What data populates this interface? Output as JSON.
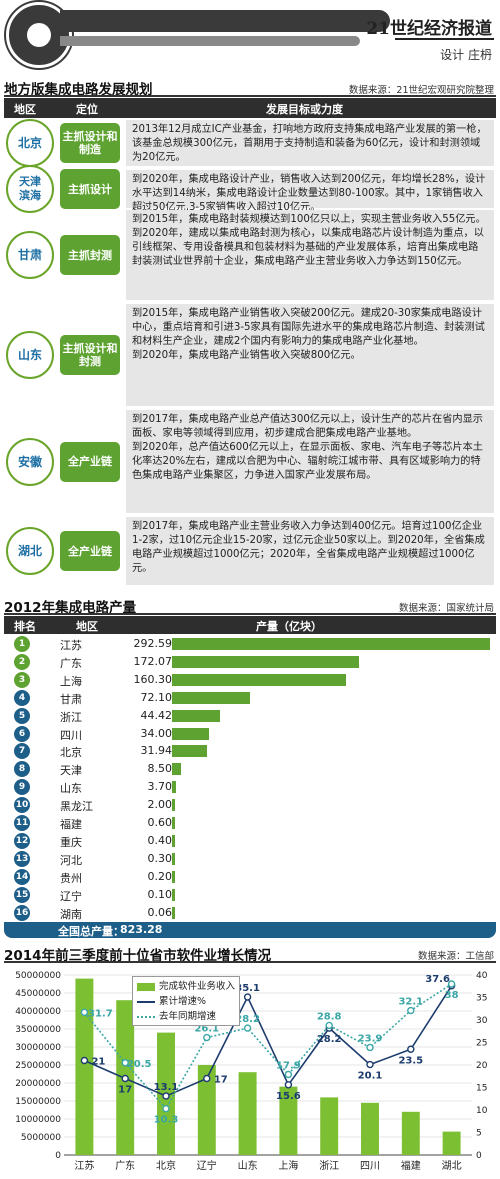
{
  "header": {
    "paper": "21世纪经济报道",
    "designer": "设计 庄枬"
  },
  "section1": {
    "title": "地方版集成电路发展规划",
    "source": "数据来源：21世纪宏观研究院整理",
    "col_region": "地区",
    "col_position": "定位",
    "col_goals": "发展目标或力度",
    "rows": [
      {
        "region": "北京",
        "position": "主抓设计和制造",
        "desc": [
          "2013年12月成立IC产业基金，打响地方政府支持集成电路产业发展的第一枪，该基金总规模300亿元，首期用于支持制造和装备为60亿元，设计和封测领域为20亿元。"
        ]
      },
      {
        "region": "天津滨海",
        "position": "主抓设计",
        "desc": [
          "到2020年，集成电路设计产业，销售收入达到200亿元，年均增长28%，设计水平达到14纳米，集成电路设计企业数量达到80-100家。其中，1家销售收入超过50亿元,3-5家销售收入超过10亿元。"
        ]
      },
      {
        "region": "甘肃",
        "position": "主抓封测",
        "desc": [
          "到2015年，集成电路封装规模达到100亿只以上，实现主营业务收入55亿元。",
          "到2020年，建成以集成电路封测为核心，以集成电路芯片设计制造为重点，以引线框架、专用设备模具和包装材料为基础的产业发展体系，培育出集成电路封装测试业世界前十企业，集成电路产业主营业务收入力争达到150亿元。"
        ]
      },
      {
        "region": "山东",
        "position": "主抓设计和封测",
        "desc": [
          "到2015年，集成电路产业销售收入突破200亿元。建成20-30家集成电路设计中心，重点培育和引进3-5家具有国际先进水平的集成电路芯片制造、封装测试和材料生产企业，建成2个国内有影响力的集成电路产业化基地。",
          "到2020年，集成电路产业销售收入突破800亿元。"
        ]
      },
      {
        "region": "安徽",
        "position": "全产业链",
        "desc": [
          "到2017年，集成电路产业总产值达300亿元以上，设计生产的芯片在省内显示面板、家电等领域得到应用，初步建成合肥集成电路产业基地。",
          "到2020年，总产值达600亿元以上，在显示面板、家电、汽车电子等芯片本土化率达20%左右，建成以合肥为中心、辐射皖江城市带、具有区域影响力的特色集成电路产业集聚区，力争进入国家产业发展布局。"
        ]
      },
      {
        "region": "湖北",
        "position": "全产业链",
        "desc": [
          "到2017年，集成电路产业主营业务收入力争达到400亿元。培育过100亿企业1-2家，过10亿元企业15-20家，过亿元企业50家以上。到2020年，全省集成电路产业规模超过1000亿元；2020年，全省集成电路产业规模超过1000亿元。"
        ]
      }
    ]
  },
  "section2": {
    "title": "2012年集成电路产量",
    "source": "数据来源：国家统计局",
    "col_rank": "排名",
    "col_region": "地区",
    "col_output": "产量（亿块）",
    "total_label": "全国总产量：",
    "total_value": "823.28",
    "rows": [
      {
        "rank": "1",
        "region": "江苏",
        "value": 292.59,
        "value_text": "292.59"
      },
      {
        "rank": "2",
        "region": "广东",
        "value": 172.07,
        "value_text": "172.07"
      },
      {
        "rank": "3",
        "region": "上海",
        "value": 160.3,
        "value_text": "160.30"
      },
      {
        "rank": "4",
        "region": "甘肃",
        "value": 72.1,
        "value_text": "72.10"
      },
      {
        "rank": "5",
        "region": "浙江",
        "value": 44.42,
        "value_text": "44.42"
      },
      {
        "rank": "6",
        "region": "四川",
        "value": 34.0,
        "value_text": "34.00"
      },
      {
        "rank": "7",
        "region": "北京",
        "value": 31.94,
        "value_text": "31.94"
      },
      {
        "rank": "8",
        "region": "天津",
        "value": 8.5,
        "value_text": "8.50"
      },
      {
        "rank": "9",
        "region": "山东",
        "value": 3.7,
        "value_text": "3.70"
      },
      {
        "rank": "10",
        "region": "黑龙江",
        "value": 2.0,
        "value_text": "2.00"
      },
      {
        "rank": "11",
        "region": "福建",
        "value": 0.6,
        "value_text": "0.60"
      },
      {
        "rank": "12",
        "region": "重庆",
        "value": 0.4,
        "value_text": "0.40"
      },
      {
        "rank": "13",
        "region": "河北",
        "value": 0.3,
        "value_text": "0.30"
      },
      {
        "rank": "14",
        "region": "贵州",
        "value": 0.2,
        "value_text": "0.20"
      },
      {
        "rank": "15",
        "region": "辽宁",
        "value": 0.1,
        "value_text": "0.10"
      },
      {
        "rank": "16",
        "region": "湖南",
        "value": 0.06,
        "value_text": "0.06"
      }
    ]
  },
  "section3": {
    "title": "2014年前三季度前十位省市软件业增长情况",
    "source": "数据来源：工信部"
  },
  "chart_data": {
    "type": "bar",
    "title": "2014年前三季度前十位省市软件业增长情况",
    "categories": [
      "江苏",
      "广东",
      "北京",
      "辽宁",
      "山东",
      "上海",
      "浙江",
      "四川",
      "福建",
      "湖北"
    ],
    "series": [
      {
        "name": "完成软件业务收入",
        "type": "bar",
        "axis": "left",
        "values": [
          49000000,
          43000000,
          34000000,
          25000000,
          23000000,
          19000000,
          16000000,
          14500000,
          12000000,
          6500000
        ]
      },
      {
        "name": "累计增速%",
        "type": "line",
        "axis": "right",
        "values": [
          21,
          17,
          13.1,
          17,
          35.1,
          15.6,
          28.2,
          20.1,
          23.5,
          37.6
        ],
        "labels": [
          "21",
          "17",
          "13.1",
          "17",
          "35.1",
          "15.6",
          "28.2",
          "20.1",
          "23.5",
          "37.6"
        ]
      },
      {
        "name": "去年同期增速",
        "type": "line",
        "axis": "right",
        "dashed": true,
        "values": [
          31.7,
          20.5,
          10.3,
          26.1,
          28.2,
          17.9,
          28.8,
          23.9,
          32.1,
          38
        ],
        "labels": [
          "31.7",
          "20.5",
          "10.3",
          "26.1",
          "28.2",
          "17.9",
          "28.8",
          "23.9",
          "32.1",
          "38"
        ]
      }
    ],
    "y_left": {
      "min": 0,
      "max": 50000000,
      "ticks": [
        "0",
        "5000000",
        "10000000",
        "15000000",
        "20000000",
        "25000000",
        "30000000",
        "35000000",
        "40000000",
        "45000000",
        "50000000"
      ]
    },
    "y_right": {
      "min": 0,
      "max": 40,
      "ticks": [
        "0",
        "5",
        "10",
        "15",
        "20",
        "25",
        "30",
        "35",
        "40"
      ]
    },
    "legend": "top-left",
    "colors": {
      "bar": "#7cbf33",
      "line1": "#1c3c6e",
      "line2": "#3aa6a6"
    }
  }
}
